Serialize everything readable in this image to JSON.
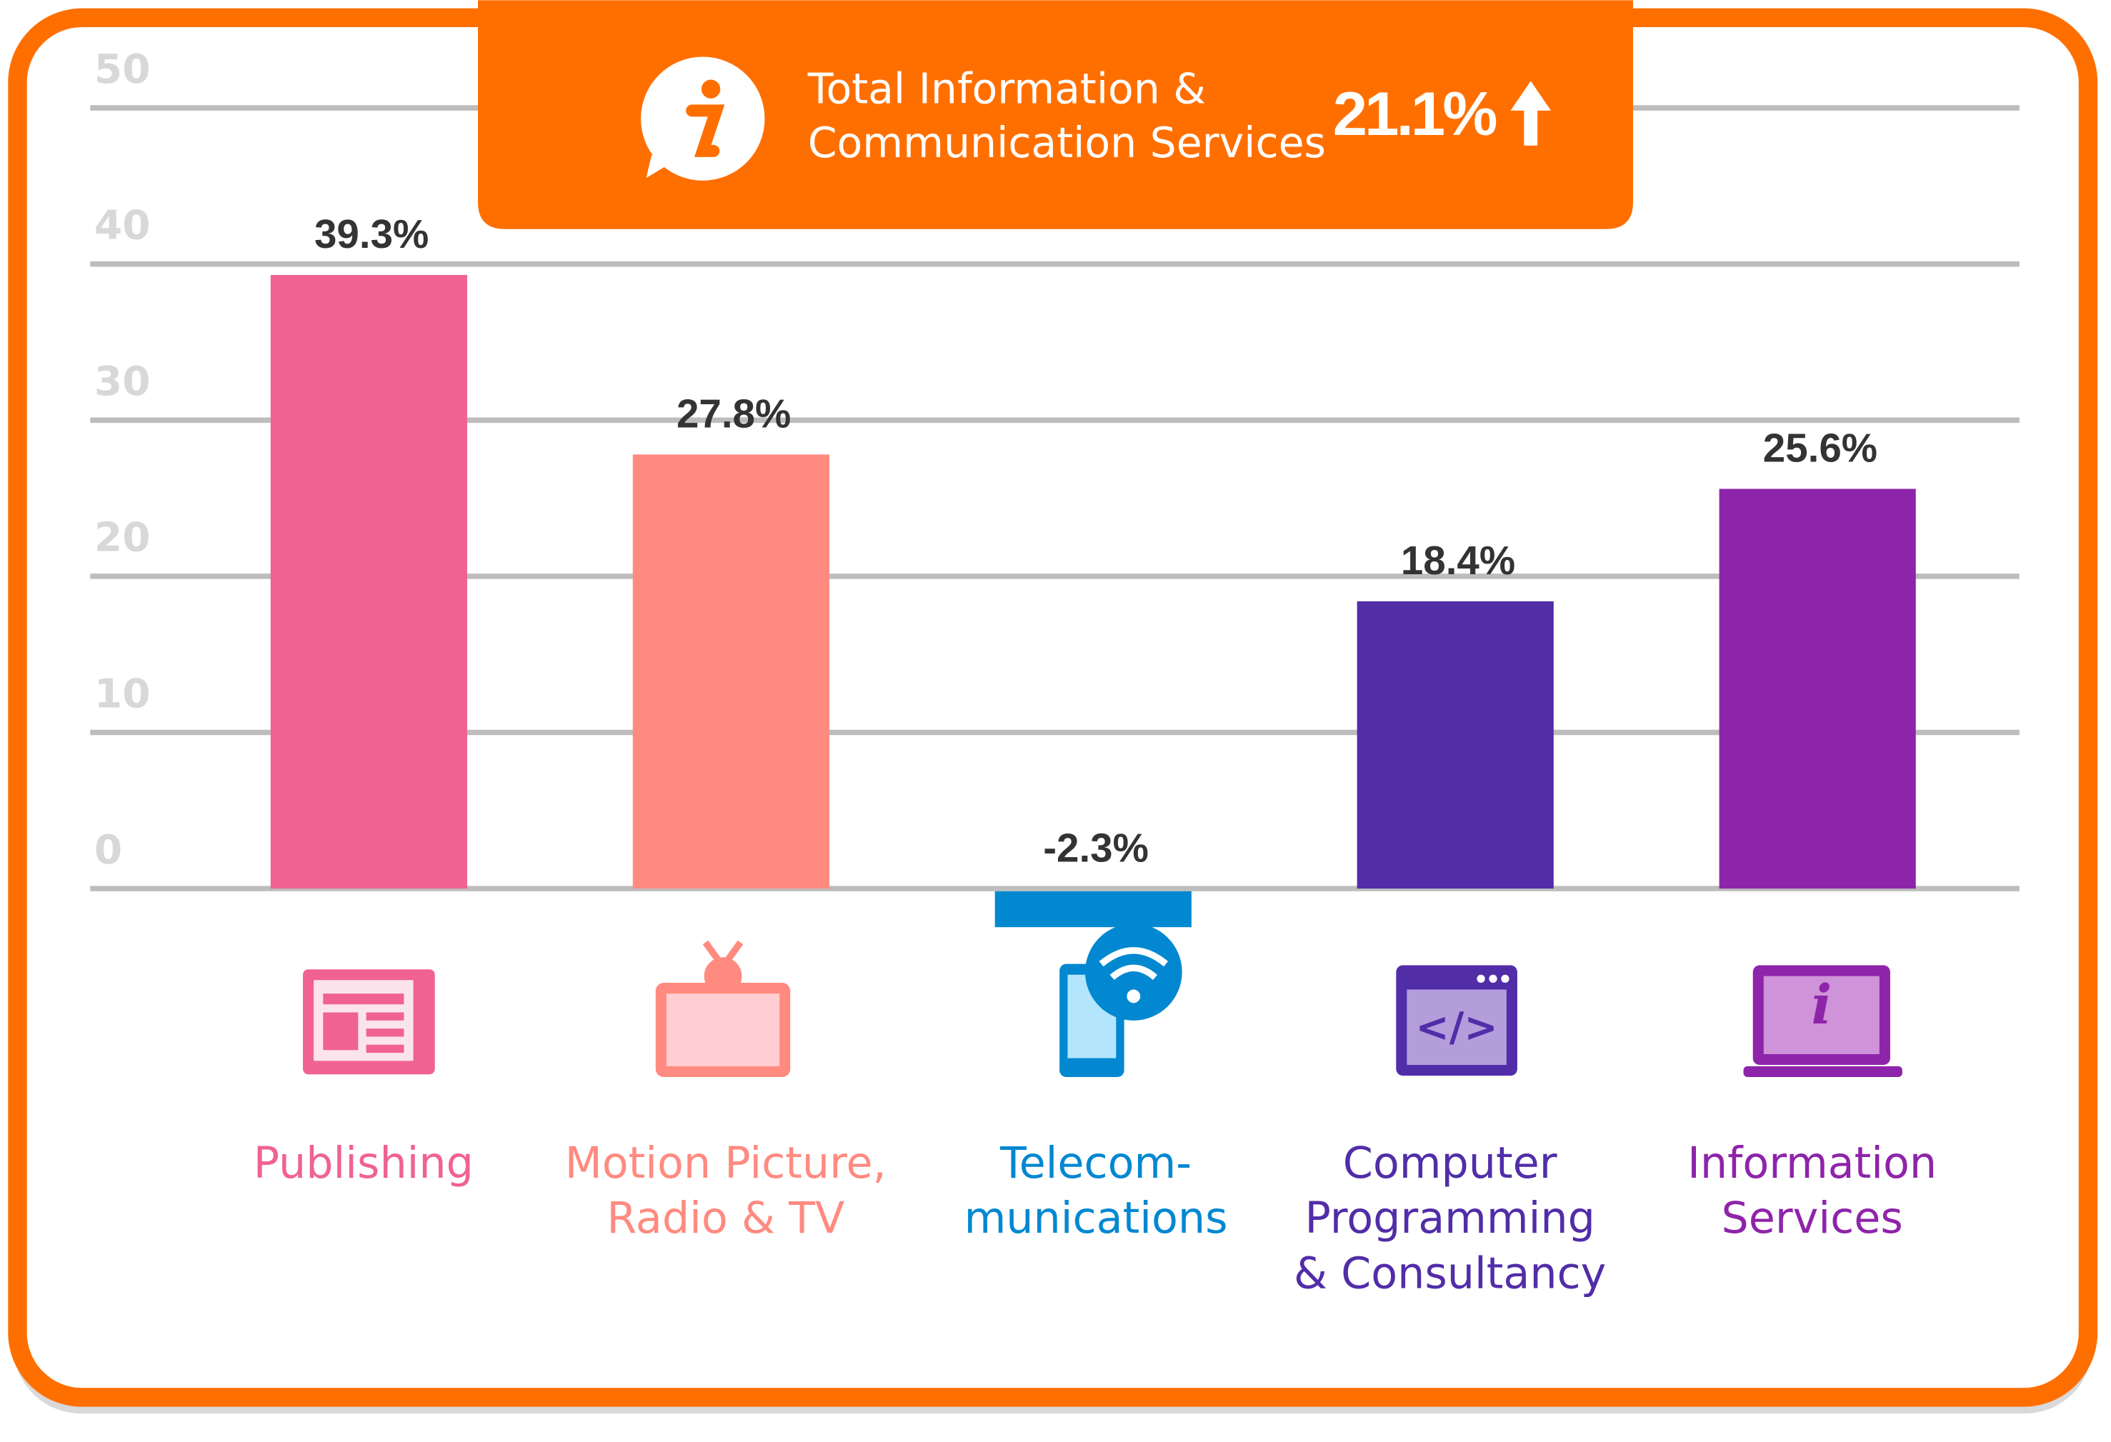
{
  "chart_data": {
    "type": "bar",
    "header": {
      "lines": [
        "Total Information &",
        "Communication Services"
      ],
      "total": {
        "value": 21.1,
        "label": "21.1%"
      }
    },
    "categories": [
      [
        "Publishing"
      ],
      [
        "Motion Picture,",
        "Radio & TV"
      ],
      [
        "Telecom-",
        "munications"
      ],
      [
        "Computer",
        "Programming",
        "& Consultancy"
      ],
      [
        "Information",
        "Services"
      ]
    ],
    "values": [
      39.3,
      27.8,
      -2.3,
      18.4,
      25.6
    ],
    "value_labels": [
      "39.3%",
      "27.8%",
      "-2.3%",
      "18.4%",
      "25.6%"
    ],
    "colors": [
      "#f06292",
      "#ff8a80",
      "#0288d1",
      "#512da8",
      "#8e24aa"
    ],
    "ylim": [
      0,
      50
    ],
    "yticks": [
      0,
      10,
      20,
      30,
      40,
      50
    ],
    "grid": true
  }
}
